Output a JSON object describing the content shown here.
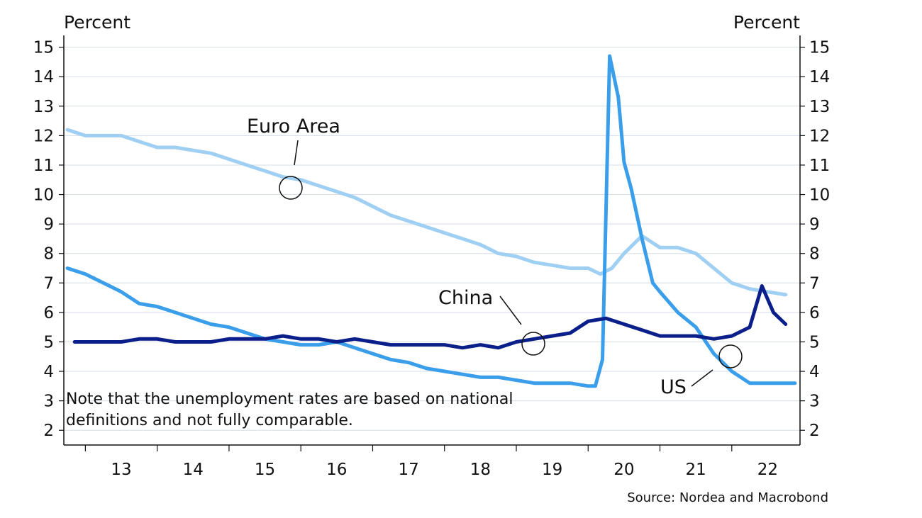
{
  "chart_data": {
    "type": "line",
    "title": "",
    "y_unit_left": "Percent",
    "y_unit_right": "Percent",
    "ylim": [
      1.5,
      15.4
    ],
    "xlim": [
      2012.7,
      2022.95
    ],
    "y_ticks": [
      "2",
      "3",
      "4",
      "5",
      "6",
      "7",
      "8",
      "9",
      "10",
      "11",
      "12",
      "13",
      "14",
      "15"
    ],
    "x_ticks": [
      "13",
      "14",
      "15",
      "16",
      "17",
      "18",
      "19",
      "20",
      "21",
      "22"
    ],
    "grid": true,
    "series": [
      {
        "name": "Euro Area",
        "color": "#9fcff2",
        "points": [
          [
            2012.75,
            12.2
          ],
          [
            2013.0,
            12.0
          ],
          [
            2013.25,
            12.0
          ],
          [
            2013.5,
            12.0
          ],
          [
            2013.75,
            11.8
          ],
          [
            2014.0,
            11.6
          ],
          [
            2014.25,
            11.6
          ],
          [
            2014.5,
            11.5
          ],
          [
            2014.75,
            11.4
          ],
          [
            2015.0,
            11.2
          ],
          [
            2015.25,
            11.0
          ],
          [
            2015.5,
            10.8
          ],
          [
            2015.75,
            10.6
          ],
          [
            2016.0,
            10.5
          ],
          [
            2016.25,
            10.3
          ],
          [
            2016.5,
            10.1
          ],
          [
            2016.75,
            9.9
          ],
          [
            2017.0,
            9.6
          ],
          [
            2017.25,
            9.3
          ],
          [
            2017.5,
            9.1
          ],
          [
            2017.75,
            8.9
          ],
          [
            2018.0,
            8.7
          ],
          [
            2018.25,
            8.5
          ],
          [
            2018.5,
            8.3
          ],
          [
            2018.75,
            8.0
          ],
          [
            2019.0,
            7.9
          ],
          [
            2019.25,
            7.7
          ],
          [
            2019.5,
            7.6
          ],
          [
            2019.75,
            7.5
          ],
          [
            2020.0,
            7.5
          ],
          [
            2020.17,
            7.3
          ],
          [
            2020.33,
            7.5
          ],
          [
            2020.5,
            8.0
          ],
          [
            2020.75,
            8.6
          ],
          [
            2021.0,
            8.2
          ],
          [
            2021.25,
            8.2
          ],
          [
            2021.5,
            8.0
          ],
          [
            2021.75,
            7.5
          ],
          [
            2022.0,
            7.0
          ],
          [
            2022.25,
            6.8
          ],
          [
            2022.5,
            6.7
          ],
          [
            2022.75,
            6.6
          ]
        ]
      },
      {
        "name": "US",
        "color": "#3a9eea",
        "points": [
          [
            2012.75,
            7.5
          ],
          [
            2013.0,
            7.3
          ],
          [
            2013.25,
            7.0
          ],
          [
            2013.5,
            6.7
          ],
          [
            2013.75,
            6.3
          ],
          [
            2014.0,
            6.2
          ],
          [
            2014.25,
            6.0
          ],
          [
            2014.5,
            5.8
          ],
          [
            2014.75,
            5.6
          ],
          [
            2015.0,
            5.5
          ],
          [
            2015.25,
            5.3
          ],
          [
            2015.5,
            5.1
          ],
          [
            2015.75,
            5.0
          ],
          [
            2016.0,
            4.9
          ],
          [
            2016.25,
            4.9
          ],
          [
            2016.5,
            5.0
          ],
          [
            2016.75,
            4.8
          ],
          [
            2017.0,
            4.6
          ],
          [
            2017.25,
            4.4
          ],
          [
            2017.5,
            4.3
          ],
          [
            2017.75,
            4.1
          ],
          [
            2018.0,
            4.0
          ],
          [
            2018.25,
            3.9
          ],
          [
            2018.5,
            3.8
          ],
          [
            2018.75,
            3.8
          ],
          [
            2019.0,
            3.7
          ],
          [
            2019.25,
            3.6
          ],
          [
            2019.5,
            3.6
          ],
          [
            2019.75,
            3.6
          ],
          [
            2020.0,
            3.5
          ],
          [
            2020.1,
            3.5
          ],
          [
            2020.2,
            4.4
          ],
          [
            2020.3,
            14.7
          ],
          [
            2020.42,
            13.3
          ],
          [
            2020.5,
            11.1
          ],
          [
            2020.6,
            10.2
          ],
          [
            2020.75,
            8.5
          ],
          [
            2020.9,
            7.0
          ],
          [
            2021.0,
            6.7
          ],
          [
            2021.25,
            6.0
          ],
          [
            2021.5,
            5.5
          ],
          [
            2021.75,
            4.6
          ],
          [
            2022.0,
            4.0
          ],
          [
            2022.25,
            3.6
          ],
          [
            2022.5,
            3.6
          ],
          [
            2022.75,
            3.6
          ],
          [
            2022.88,
            3.6
          ]
        ]
      },
      {
        "name": "China",
        "color": "#0b1f8a",
        "points": [
          [
            2012.85,
            5.0
          ],
          [
            2013.0,
            5.0
          ],
          [
            2013.25,
            5.0
          ],
          [
            2013.5,
            5.0
          ],
          [
            2013.75,
            5.1
          ],
          [
            2014.0,
            5.1
          ],
          [
            2014.25,
            5.0
          ],
          [
            2014.5,
            5.0
          ],
          [
            2014.75,
            5.0
          ],
          [
            2015.0,
            5.1
          ],
          [
            2015.25,
            5.1
          ],
          [
            2015.5,
            5.1
          ],
          [
            2015.75,
            5.2
          ],
          [
            2016.0,
            5.1
          ],
          [
            2016.25,
            5.1
          ],
          [
            2016.5,
            5.0
          ],
          [
            2016.75,
            5.1
          ],
          [
            2017.0,
            5.0
          ],
          [
            2017.25,
            4.9
          ],
          [
            2017.5,
            4.9
          ],
          [
            2017.75,
            4.9
          ],
          [
            2018.0,
            4.9
          ],
          [
            2018.25,
            4.8
          ],
          [
            2018.5,
            4.9
          ],
          [
            2018.75,
            4.8
          ],
          [
            2019.0,
            5.0
          ],
          [
            2019.25,
            5.1
          ],
          [
            2019.5,
            5.2
          ],
          [
            2019.75,
            5.3
          ],
          [
            2020.0,
            5.7
          ],
          [
            2020.25,
            5.8
          ],
          [
            2020.5,
            5.6
          ],
          [
            2020.75,
            5.4
          ],
          [
            2021.0,
            5.2
          ],
          [
            2021.25,
            5.2
          ],
          [
            2021.5,
            5.2
          ],
          [
            2021.75,
            5.1
          ],
          [
            2022.0,
            5.2
          ],
          [
            2022.25,
            5.5
          ],
          [
            2022.42,
            6.9
          ],
          [
            2022.58,
            6.0
          ],
          [
            2022.75,
            5.6
          ]
        ]
      }
    ],
    "annotations": [
      "Euro Area",
      "China",
      "US"
    ],
    "note_lines": [
      "Note that the unemployment rates are based on national",
      "definitions and not fully comparable."
    ],
    "source": "Source: Nordea and Macrobond"
  }
}
